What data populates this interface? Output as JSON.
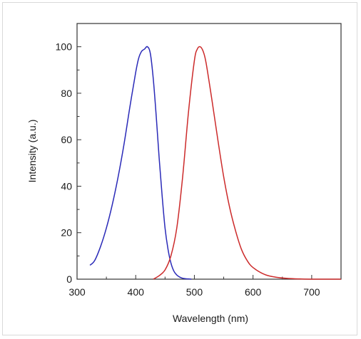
{
  "chart_data": {
    "type": "line",
    "title": "",
    "xlabel": "Wavelength (nm)",
    "ylabel": "Intensity (a.u.)",
    "xlim": [
      300,
      750
    ],
    "ylim": [
      0,
      110
    ],
    "xticks": [
      300,
      400,
      500,
      600,
      700
    ],
    "yticks": [
      0,
      20,
      40,
      60,
      80,
      100
    ],
    "grid": false,
    "legend": "none",
    "series": [
      {
        "color": "#2a2ab8",
        "x": [
          322,
          330,
          340,
          350,
          360,
          370,
          380,
          390,
          400,
          405,
          410,
          415,
          420,
          425,
          430,
          435,
          440,
          445,
          450,
          455,
          460,
          465,
          470,
          475,
          480,
          485,
          490,
          495
        ],
        "y": [
          6,
          8,
          14,
          22,
          32,
          44,
          58,
          74,
          89,
          95,
          98,
          99,
          100,
          97,
          86,
          70,
          52,
          36,
          22,
          13,
          7,
          3.5,
          1.8,
          0.9,
          0.4,
          0.2,
          0.1,
          0
        ]
      },
      {
        "color": "#cc2a2a",
        "x": [
          430,
          440,
          450,
          460,
          470,
          480,
          490,
          500,
          505,
          510,
          515,
          520,
          530,
          540,
          550,
          560,
          570,
          580,
          590,
          600,
          620,
          640,
          660,
          680,
          700,
          750
        ],
        "y": [
          0,
          1.5,
          4,
          10,
          22,
          44,
          72,
          94,
          99,
          100,
          98,
          93,
          77,
          60,
          44,
          31,
          21,
          13,
          8,
          5,
          2,
          0.8,
          0.3,
          0.1,
          0,
          0
        ]
      }
    ]
  }
}
